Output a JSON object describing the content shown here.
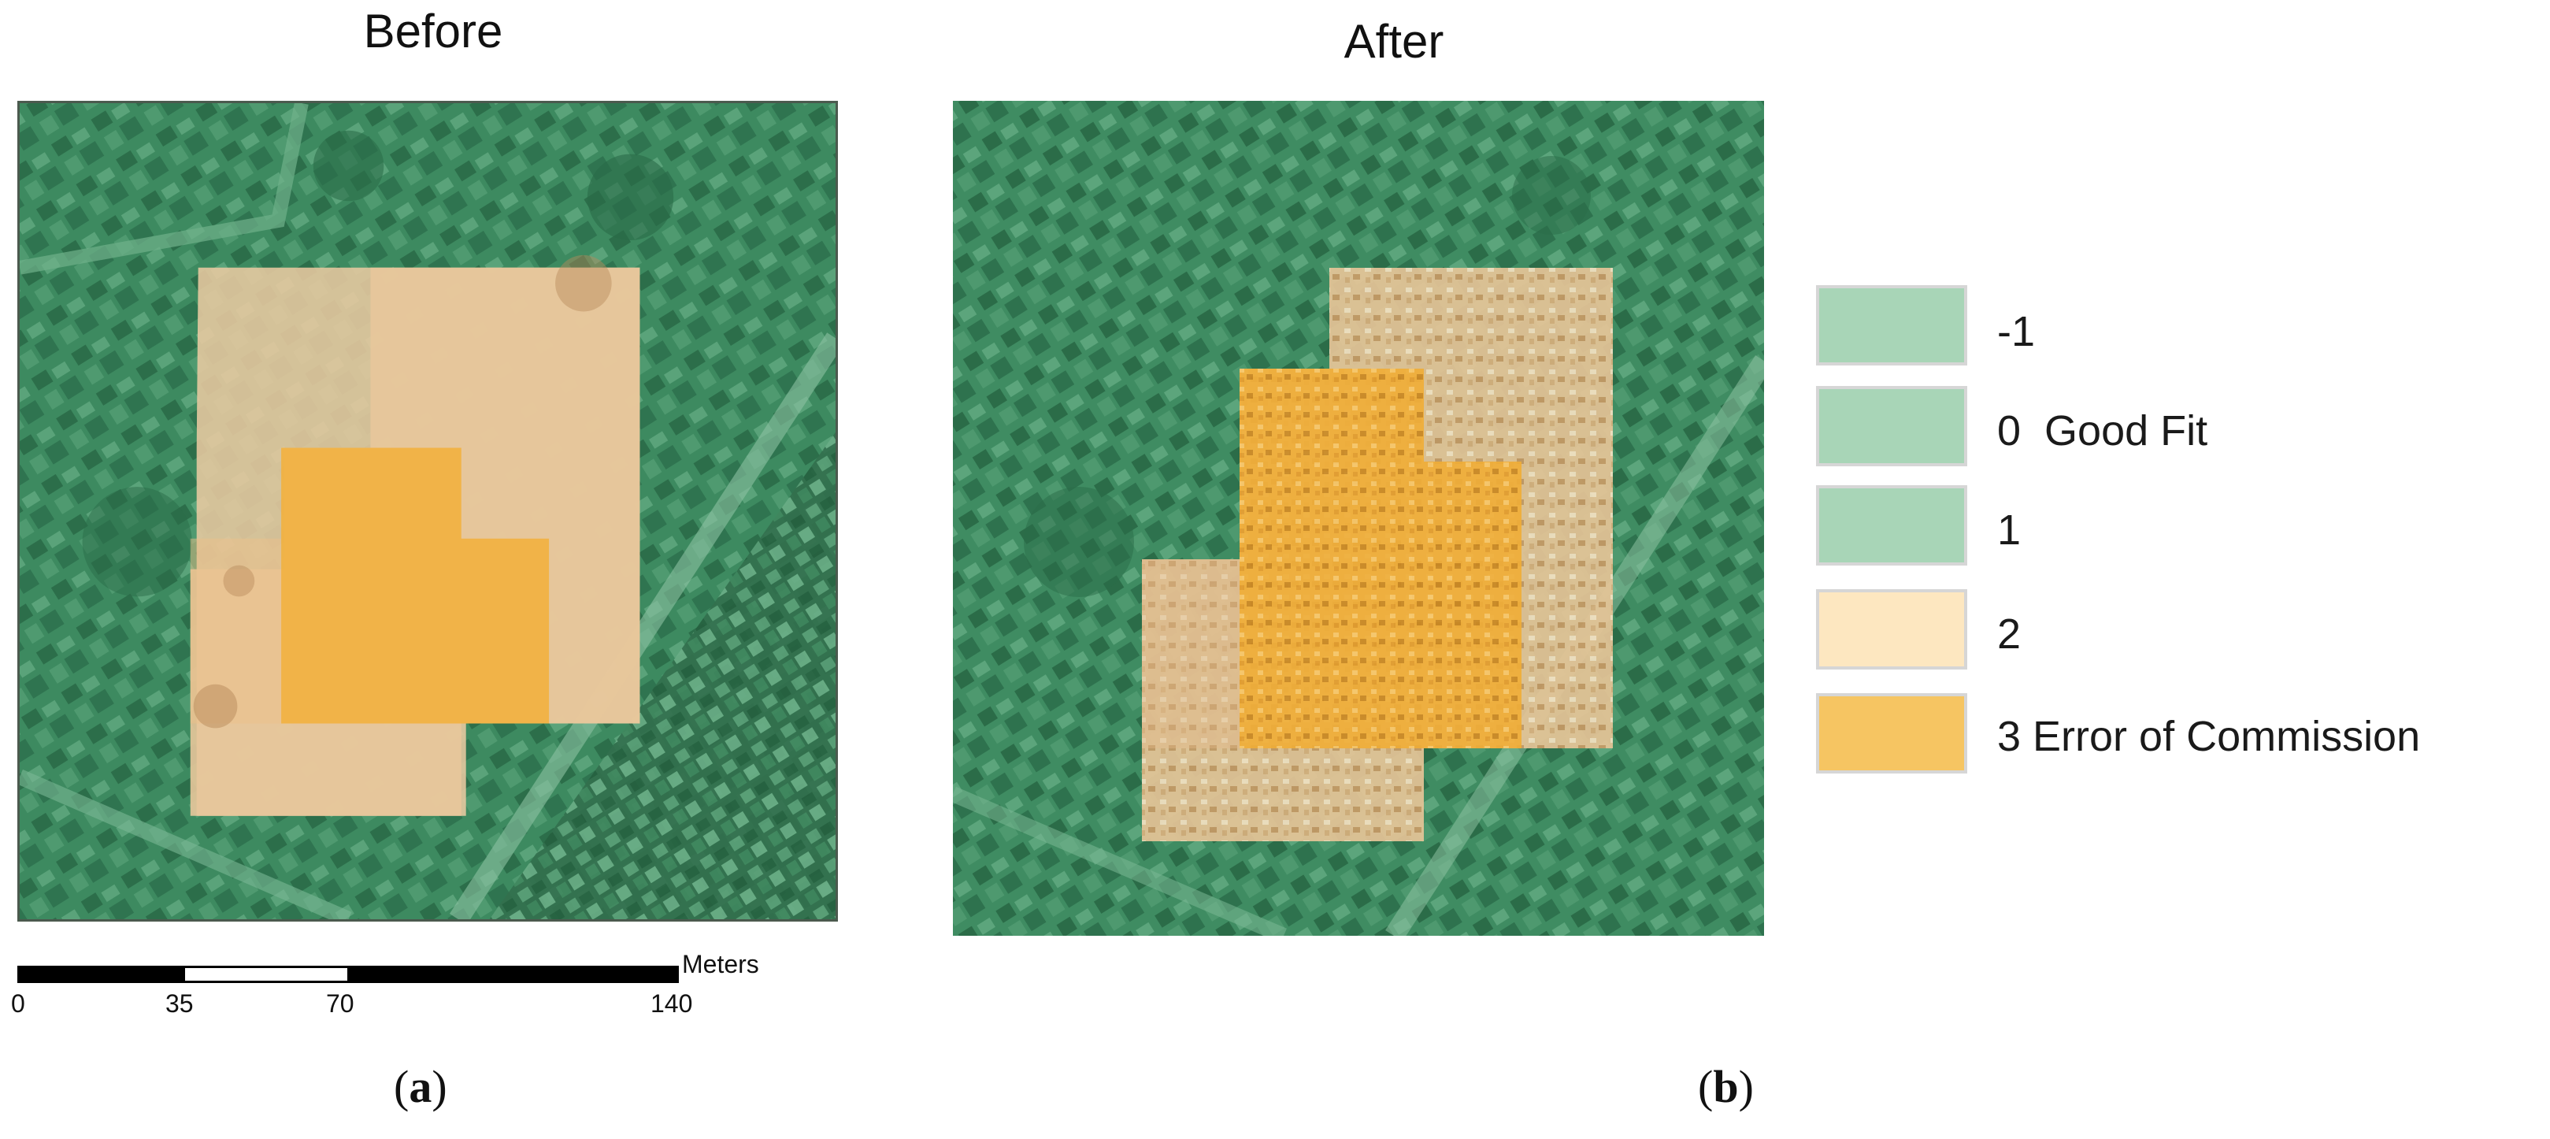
{
  "panels": {
    "before": {
      "title": "Before",
      "caption_open": "(",
      "caption_letter": "a",
      "caption_close": ")"
    },
    "after": {
      "title": "After",
      "caption_open": "(",
      "caption_letter": "b",
      "caption_close": ")"
    }
  },
  "legend": {
    "items": [
      {
        "label": "-1",
        "color": "#a8d5b7"
      },
      {
        "label": "0  Good Fit",
        "color": "#a8d5b7"
      },
      {
        "label": "1",
        "color": "#a8d5b7"
      },
      {
        "label": "2",
        "color": "#fde7c0"
      },
      {
        "label": "3 Error of Commission",
        "color": "#f6c562"
      }
    ]
  },
  "scalebar": {
    "units": "Meters",
    "ticks": [
      "0",
      "35",
      "70",
      "140"
    ]
  },
  "colors": {
    "map_base": "#3f8a61",
    "map_dark": "#2a6b47",
    "overlay_light": "#e9c9a0",
    "overlay_strong": "#f2b13c"
  }
}
